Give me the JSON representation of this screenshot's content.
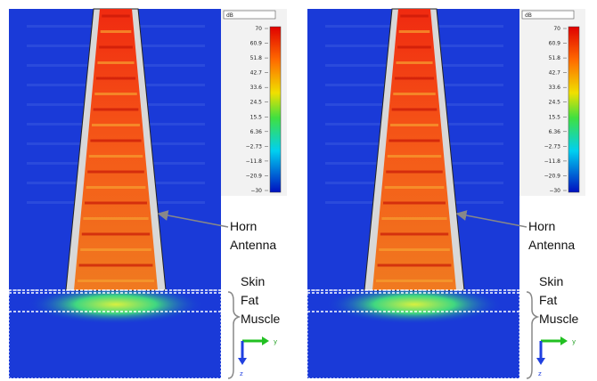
{
  "panels": [
    {
      "colorbar": {
        "unit": "dB",
        "labels": [
          "70",
          "60.9",
          "51.8",
          "42.7",
          "33.6",
          "24.5",
          "15.5",
          "6.36",
          "−2.73",
          "−11.8",
          "−20.9",
          "−30"
        ]
      },
      "annotations": {
        "horn": "Horn",
        "antenna": "Antenna",
        "skin": "Skin",
        "fat": "Fat",
        "muscle": "Muscle"
      },
      "axes": {
        "y": "y",
        "z": "z"
      }
    },
    {
      "colorbar": {
        "unit": "dB",
        "labels": [
          "70",
          "60.9",
          "51.8",
          "42.7",
          "33.6",
          "24.5",
          "15.5",
          "6.36",
          "−2.73",
          "−11.8",
          "−20.9",
          "−30"
        ]
      },
      "annotations": {
        "horn": "Horn",
        "antenna": "Antenna",
        "skin": "Skin",
        "fat": "Fat",
        "muscle": "Muscle"
      },
      "axes": {
        "y": "y",
        "z": "z"
      }
    }
  ]
}
